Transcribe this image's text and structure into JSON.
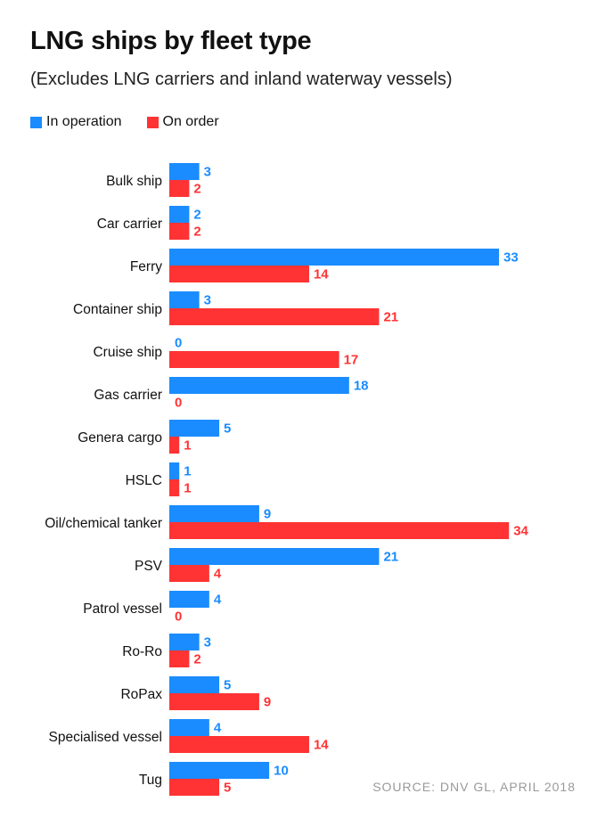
{
  "header": {
    "title": "LNG ships by fleet type",
    "subtitle": "(Excludes LNG carriers and inland waterway vessels)"
  },
  "legend": {
    "items": [
      {
        "label": "In operation",
        "color": "#1a8cff"
      },
      {
        "label": "On order",
        "color": "#ff3333"
      }
    ]
  },
  "source": "SOURCE: DNV GL, APRIL 2018",
  "chart_data": {
    "type": "bar",
    "orientation": "horizontal",
    "categories": [
      "Bulk ship",
      "Car carrier",
      "Ferry",
      "Container ship",
      "Cruise ship",
      "Gas carrier",
      "Genera cargo",
      "HSLC",
      "Oil/chemical tanker",
      "PSV",
      "Patrol vessel",
      "Ro-Ro",
      "RoPax",
      "Specialised vessel",
      "Tug"
    ],
    "series": [
      {
        "name": "In operation",
        "color": "#1a8cff",
        "values": [
          3,
          2,
          33,
          3,
          0,
          18,
          5,
          1,
          9,
          21,
          4,
          3,
          5,
          4,
          10
        ]
      },
      {
        "name": "On order",
        "color": "#ff3333",
        "values": [
          2,
          2,
          14,
          21,
          17,
          0,
          1,
          1,
          34,
          4,
          0,
          2,
          9,
          14,
          5
        ]
      }
    ],
    "grid": false,
    "legend_position": "top-left",
    "xlim": [
      0,
      34
    ]
  }
}
